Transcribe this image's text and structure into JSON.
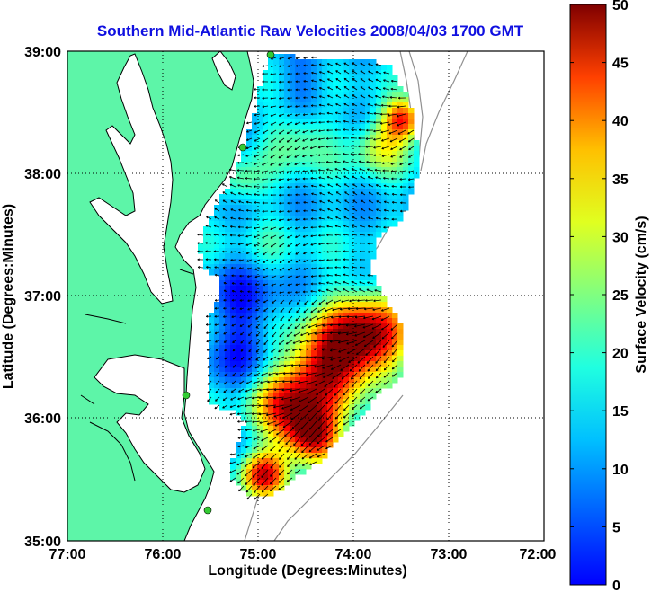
{
  "title": "Southern Mid-Atlantic Raw Velocities 2008/04/03 1700 GMT",
  "x_axis": {
    "label": "Longitude (Degrees:Minutes)",
    "ticks": [
      "77:00",
      "76:00",
      "75:00",
      "74:00",
      "73:00",
      "72:00"
    ]
  },
  "y_axis": {
    "label": "Latitude (Degrees:Minutes)",
    "ticks": [
      "39:00",
      "38:00",
      "37:00",
      "36:00",
      "35:00"
    ]
  },
  "colorbar": {
    "label": "Surface Velocity (cm/s)",
    "ticks": [
      "50",
      "45",
      "40",
      "35",
      "30",
      "25",
      "20",
      "15",
      "10",
      "5",
      "0"
    ],
    "range": [
      0,
      50
    ],
    "colormap": "jet"
  },
  "colors": {
    "title": "#1010e0",
    "land": "#5df5a8",
    "coastline": "#000000",
    "bathymetry": "#909090",
    "radar_site": "#33cc33"
  },
  "map_extent": {
    "lon": [
      -77,
      -72
    ],
    "lat": [
      35,
      39
    ]
  },
  "grid": "dotted"
}
